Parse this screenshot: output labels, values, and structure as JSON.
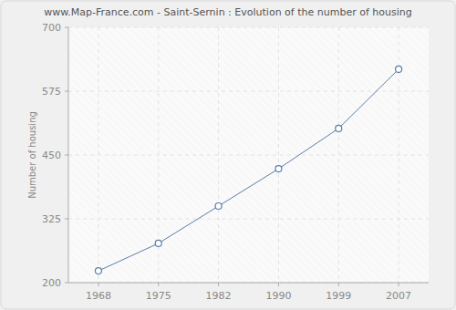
{
  "chart_data": {
    "type": "line",
    "title": "www.Map-France.com - Saint-Sernin : Evolution of the number of housing",
    "y_label": "Number of housing",
    "categories": [
      "1968",
      "1975",
      "1982",
      "1990",
      "1999",
      "2007"
    ],
    "values": [
      223,
      277,
      350,
      423,
      502,
      618
    ],
    "color": "#5a7ea8",
    "marker": "circle",
    "ylim": [
      200,
      700
    ],
    "yticks": [
      200,
      325,
      450,
      575,
      700
    ],
    "grid": true
  }
}
